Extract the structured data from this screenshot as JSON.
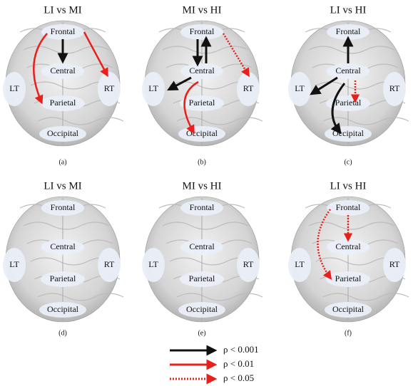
{
  "panels": [
    {
      "title": "LI vs MI",
      "caption": "(a)",
      "regions": {
        "frontal": "Frontal",
        "central": "Central",
        "parietal": "Parietal",
        "occipital": "Occipital",
        "lt": "LT",
        "rt": "RT"
      }
    },
    {
      "title": "MI vs HI",
      "caption": "(b)",
      "regions": {
        "frontal": "Frontal",
        "central": "Central",
        "parietal": "Parietal",
        "occipital": "Occipital",
        "lt": "LT",
        "rt": "RT"
      }
    },
    {
      "title": "LI vs HI",
      "caption": "(c)",
      "regions": {
        "frontal": "Frontal",
        "central": "Central",
        "parietal": "Parietal",
        "occipital": "Occipital",
        "lt": "LT",
        "rt": "RT"
      }
    },
    {
      "title": "LI vs MI",
      "caption": "(d)",
      "regions": {
        "frontal": "Frontal",
        "central": "Central",
        "parietal": "Parietal",
        "occipital": "Occipital",
        "lt": "LT",
        "rt": "RT"
      }
    },
    {
      "title": "MI vs HI",
      "caption": "(e)",
      "regions": {
        "frontal": "Frontal",
        "central": "Central",
        "parietal": "Parietal",
        "occipital": "Occipital",
        "lt": "LT",
        "rt": "RT"
      }
    },
    {
      "title": "LI vs HI",
      "caption": "(f)",
      "regions": {
        "frontal": "Frontal",
        "central": "Central",
        "parietal": "Parietal",
        "occipital": "Occipital",
        "lt": "LT",
        "rt": "RT"
      }
    }
  ],
  "legend": [
    {
      "label": "ρ < 0.001"
    },
    {
      "label": "ρ < 0.01"
    },
    {
      "label": "ρ < 0.05"
    }
  ]
}
